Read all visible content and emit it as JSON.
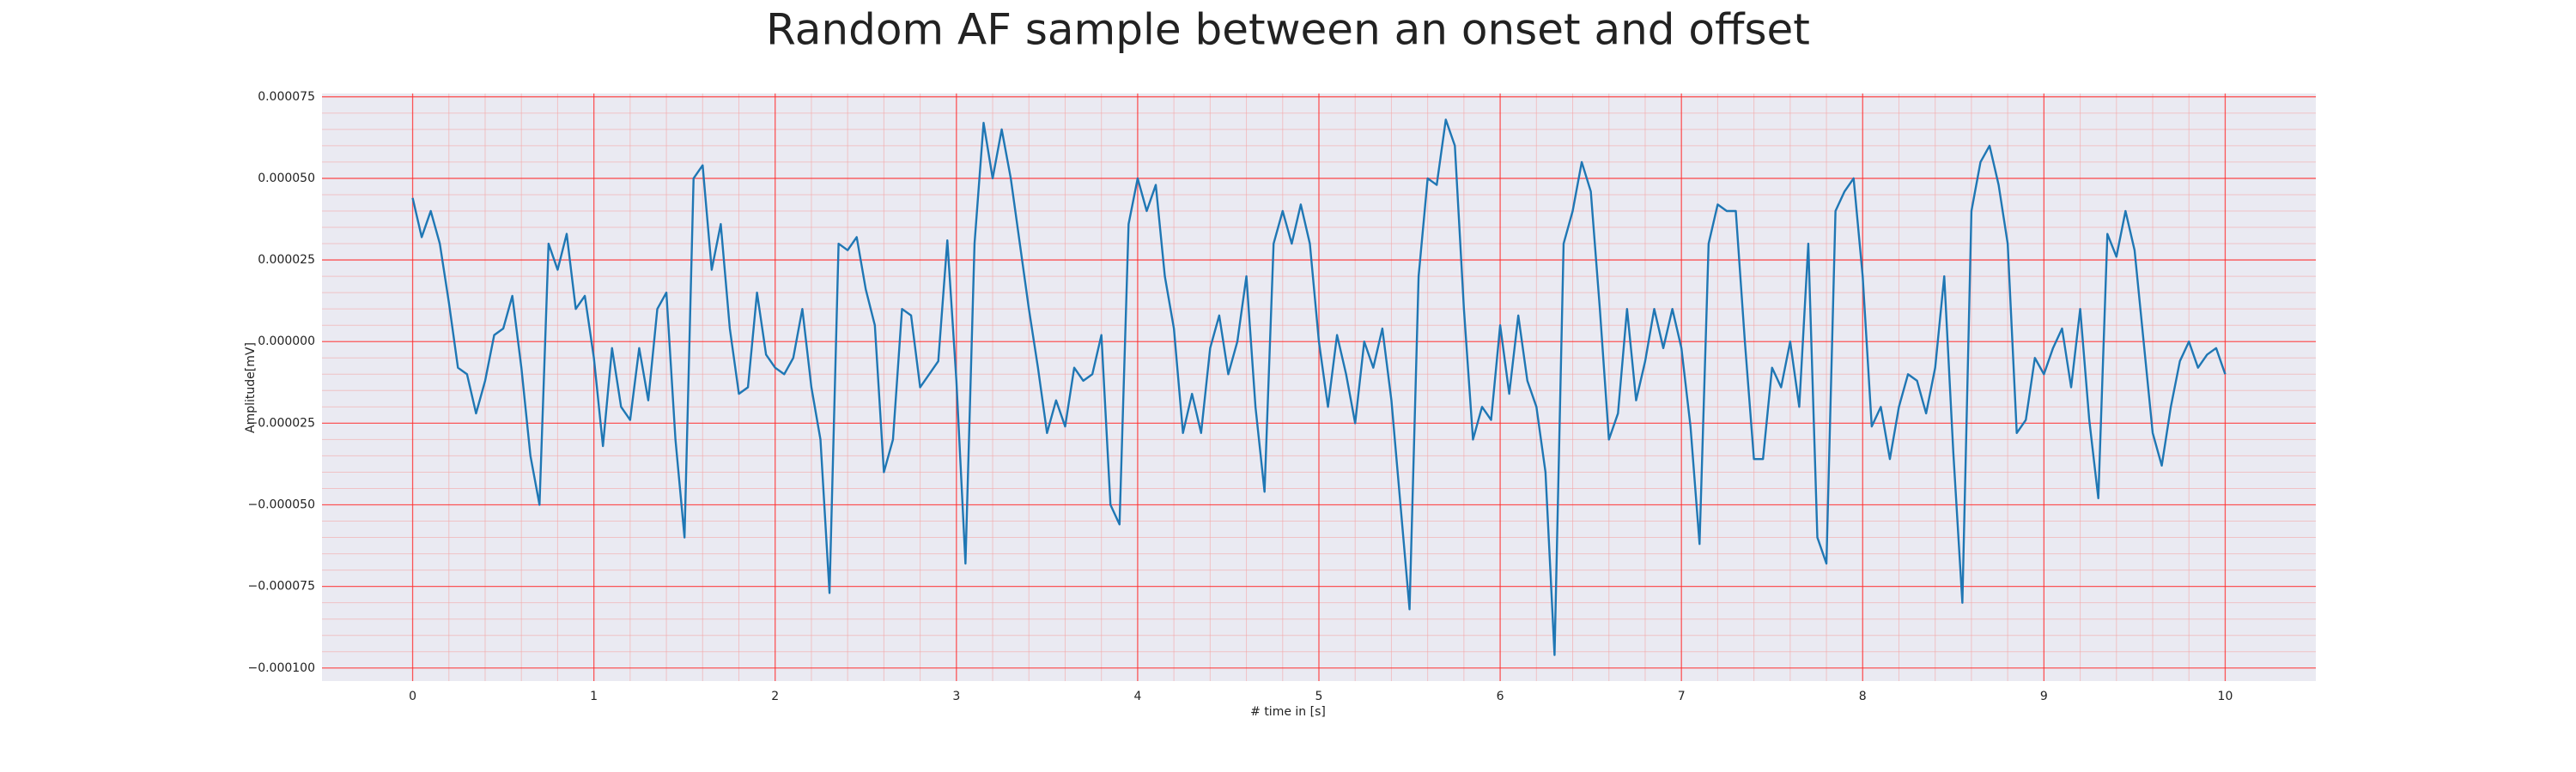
{
  "chart_data": {
    "type": "line",
    "title": "Random AF sample between an onset and offset",
    "xlabel": "# time in [s]",
    "ylabel": "Amplitude[mV]",
    "color": "#1f77b4",
    "grid": true,
    "minor_grid": true,
    "xlim": [
      -0.5,
      10.5
    ],
    "ylim": [
      -0.000104,
      7.6e-05
    ],
    "xticks": [
      0,
      1,
      2,
      3,
      4,
      5,
      6,
      7,
      8,
      9,
      10
    ],
    "yticks": [
      {
        "value": 7.5e-05,
        "label": "0.000075"
      },
      {
        "value": 5e-05,
        "label": "0.000050"
      },
      {
        "value": 2.5e-05,
        "label": "0.000025"
      },
      {
        "value": 0,
        "label": "0.000000"
      },
      {
        "value": -2.5e-05,
        "label": "−0.000025"
      },
      {
        "value": -5e-05,
        "label": "−0.000050"
      },
      {
        "value": -7.5e-05,
        "label": "−0.000075"
      },
      {
        "value": -0.0001,
        "label": "−0.000100"
      }
    ],
    "x": [
      0,
      0.05,
      0.1,
      0.15,
      0.2,
      0.25,
      0.3,
      0.35,
      0.4,
      0.45,
      0.5,
      0.55,
      0.6,
      0.65,
      0.7,
      0.75,
      0.8,
      0.85,
      0.9,
      0.95,
      1,
      1.05,
      1.1,
      1.15,
      1.2,
      1.25,
      1.3,
      1.35,
      1.4,
      1.45,
      1.5,
      1.55,
      1.6,
      1.65,
      1.7,
      1.75,
      1.8,
      1.85,
      1.9,
      1.95,
      2,
      2.05,
      2.1,
      2.15,
      2.2,
      2.25,
      2.3,
      2.35,
      2.4,
      2.45,
      2.5,
      2.55,
      2.6,
      2.65,
      2.7,
      2.75,
      2.8,
      2.85,
      2.9,
      2.95,
      3,
      3.05,
      3.1,
      3.15,
      3.2,
      3.25,
      3.3,
      3.35,
      3.4,
      3.45,
      3.5,
      3.55,
      3.6,
      3.65,
      3.7,
      3.75,
      3.8,
      3.85,
      3.9,
      3.95,
      4,
      4.05,
      4.1,
      4.15,
      4.2,
      4.25,
      4.3,
      4.35,
      4.4,
      4.45,
      4.5,
      4.55,
      4.6,
      4.65,
      4.7,
      4.75,
      4.8,
      4.85,
      4.9,
      4.95,
      5,
      5.05,
      5.1,
      5.15,
      5.2,
      5.25,
      5.3,
      5.35,
      5.4,
      5.45,
      5.5,
      5.55,
      5.6,
      5.65,
      5.7,
      5.75,
      5.8,
      5.85,
      5.9,
      5.95,
      6,
      6.05,
      6.1,
      6.15,
      6.2,
      6.25,
      6.3,
      6.35,
      6.4,
      6.45,
      6.5,
      6.55,
      6.6,
      6.65,
      6.7,
      6.75,
      6.8,
      6.85,
      6.9,
      6.95,
      7,
      7.05,
      7.1,
      7.15,
      7.2,
      7.25,
      7.3,
      7.35,
      7.4,
      7.45,
      7.5,
      7.55,
      7.6,
      7.65,
      7.7,
      7.75,
      7.8,
      7.85,
      7.9,
      7.95,
      8,
      8.05,
      8.1,
      8.15,
      8.2,
      8.25,
      8.3,
      8.35,
      8.4,
      8.45,
      8.5,
      8.55,
      8.6,
      8.65,
      8.7,
      8.75,
      8.8,
      8.85,
      8.9,
      8.95,
      9,
      9.05,
      9.1,
      9.15,
      9.2,
      9.25,
      9.3,
      9.35,
      9.4,
      9.45,
      9.5,
      9.55,
      9.6,
      9.65,
      9.7,
      9.75,
      9.8,
      9.85,
      9.9,
      9.95,
      10
    ],
    "values": [
      4.4e-05,
      3.2e-05,
      4e-05,
      3e-05,
      1.2e-05,
      -8e-06,
      -1e-05,
      -2.2e-05,
      -1.2e-05,
      2e-06,
      4e-06,
      1.4e-05,
      -8e-06,
      -3.5e-05,
      -5e-05,
      3e-05,
      2.2e-05,
      3.3e-05,
      1e-05,
      1.4e-05,
      -5e-06,
      -3.2e-05,
      -2e-06,
      -2e-05,
      -2.4e-05,
      -2e-06,
      -1.8e-05,
      1e-05,
      1.5e-05,
      -3e-05,
      -6e-05,
      5e-05,
      5.4e-05,
      2.2e-05,
      3.6e-05,
      4e-06,
      -1.6e-05,
      -1.4e-05,
      1.5e-05,
      -4e-06,
      -8e-06,
      -1e-05,
      -5e-06,
      1e-05,
      -1.4e-05,
      -3e-05,
      -7.7e-05,
      3e-05,
      2.8e-05,
      3.2e-05,
      1.6e-05,
      5e-06,
      -4e-05,
      -3e-05,
      1e-05,
      8e-06,
      -1.4e-05,
      -1e-05,
      -6e-06,
      3.1e-05,
      -1.2e-05,
      -6.8e-05,
      3e-05,
      6.7e-05,
      5e-05,
      6.5e-05,
      5e-05,
      3e-05,
      1e-05,
      -8e-06,
      -2.8e-05,
      -1.8e-05,
      -2.6e-05,
      -8e-06,
      -1.2e-05,
      -1e-05,
      2e-06,
      -5e-05,
      -5.6e-05,
      3.6e-05,
      5e-05,
      4e-05,
      4.8e-05,
      2e-05,
      4e-06,
      -2.8e-05,
      -1.6e-05,
      -2.8e-05,
      -2e-06,
      8e-06,
      -1e-05,
      0,
      2e-05,
      -2e-05,
      -4.6e-05,
      3e-05,
      4e-05,
      3e-05,
      4.2e-05,
      3e-05,
      0,
      -2e-05,
      2e-06,
      -1e-05,
      -2.5e-05,
      0,
      -8e-06,
      4e-06,
      -1.8e-05,
      -5e-05,
      -8.2e-05,
      2e-05,
      5e-05,
      4.8e-05,
      6.8e-05,
      6e-05,
      1e-05,
      -3e-05,
      -2e-05,
      -2.4e-05,
      5e-06,
      -1.6e-05,
      8e-06,
      -1.2e-05,
      -2e-05,
      -4e-05,
      -9.6e-05,
      3e-05,
      4e-05,
      5.5e-05,
      4.6e-05,
      1e-05,
      -3e-05,
      -2.2e-05,
      1e-05,
      -1.8e-05,
      -6e-06,
      1e-05,
      -2e-06,
      1e-05,
      -2e-06,
      -2.6e-05,
      -6.2e-05,
      3e-05,
      4.2e-05,
      4e-05,
      4e-05,
      0,
      -3.6e-05,
      -3.6e-05,
      -8e-06,
      -1.4e-05,
      0,
      -2e-05,
      3e-05,
      -6e-05,
      -6.8e-05,
      4e-05,
      4.6e-05,
      5e-05,
      2e-05,
      -2.6e-05,
      -2e-05,
      -3.6e-05,
      -2e-05,
      -1e-05,
      -1.2e-05,
      -2.2e-05,
      -8e-06,
      2e-05,
      -3.4e-05,
      -8e-05,
      4e-05,
      5.5e-05,
      6e-05,
      4.8e-05,
      3e-05,
      -2.8e-05,
      -2.4e-05,
      -5e-06,
      -1e-05,
      -2e-06,
      4e-06,
      -1.4e-05,
      1e-05,
      -2.4e-05,
      -4.8e-05,
      3.3e-05,
      2.6e-05,
      4e-05,
      2.8e-05,
      0,
      -2.8e-05,
      -3.8e-05,
      -2e-05,
      -6e-06,
      0,
      -8e-06,
      -4e-06,
      -2e-06,
      -1e-05
    ]
  }
}
